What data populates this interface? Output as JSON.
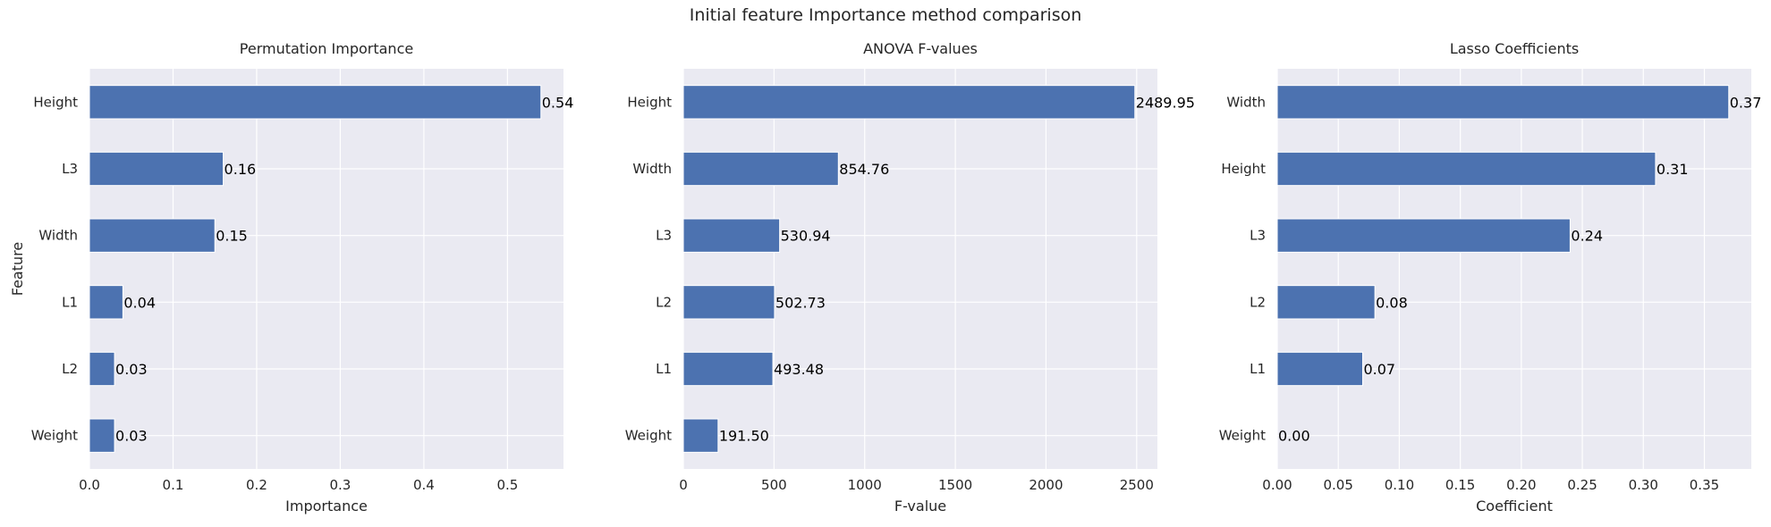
{
  "suptitle": "Initial feature Importance method comparison",
  "colors": {
    "bar": "#4c72b0",
    "panel_bg": "#eaeaf2",
    "grid": "#ffffff"
  },
  "chart_data": [
    {
      "type": "bar",
      "orientation": "horizontal",
      "title": "Permutation Importance",
      "xlabel": "Importance",
      "ylabel": "Feature",
      "categories": [
        "Height",
        "L3",
        "Width",
        "L1",
        "L2",
        "Weight"
      ],
      "values": [
        0.54,
        0.16,
        0.15,
        0.04,
        0.03,
        0.03
      ],
      "value_labels": [
        "0.54",
        "0.16",
        "0.15",
        "0.04",
        "0.03",
        "0.03"
      ],
      "xlim": [
        0,
        0.567
      ],
      "xticks": [
        0,
        0.1,
        0.2,
        0.3,
        0.4,
        0.5
      ],
      "xtick_labels": [
        "0.0",
        "0.1",
        "0.2",
        "0.3",
        "0.4",
        "0.5"
      ],
      "grid": true
    },
    {
      "type": "bar",
      "orientation": "horizontal",
      "title": "ANOVA F-values",
      "xlabel": "F-value",
      "ylabel": "",
      "categories": [
        "Height",
        "Width",
        "L3",
        "L2",
        "L1",
        "Weight"
      ],
      "values": [
        2489.95,
        854.76,
        530.94,
        502.73,
        493.48,
        191.5
      ],
      "value_labels": [
        "2489.95",
        "854.76",
        "530.94",
        "502.73",
        "493.48",
        "191.50"
      ],
      "xlim": [
        0,
        2614.4
      ],
      "xticks": [
        0,
        500,
        1000,
        1500,
        2000,
        2500
      ],
      "xtick_labels": [
        "0",
        "500",
        "1000",
        "1500",
        "2000",
        "2500"
      ],
      "grid": true
    },
    {
      "type": "bar",
      "orientation": "horizontal",
      "title": "Lasso Coefficients",
      "xlabel": "Coefficient",
      "ylabel": "",
      "categories": [
        "Width",
        "Height",
        "L3",
        "L2",
        "L1",
        "Weight"
      ],
      "values": [
        0.37,
        0.31,
        0.24,
        0.08,
        0.07,
        0.0
      ],
      "value_labels": [
        "0.37",
        "0.31",
        "0.24",
        "0.08",
        "0.07",
        "0.00"
      ],
      "xlim": [
        0,
        0.3885
      ],
      "xticks": [
        0,
        0.05,
        0.1,
        0.15,
        0.2,
        0.25,
        0.3,
        0.35
      ],
      "xtick_labels": [
        "0.00",
        "0.05",
        "0.10",
        "0.15",
        "0.20",
        "0.25",
        "0.30",
        "0.35"
      ],
      "grid": true
    }
  ]
}
